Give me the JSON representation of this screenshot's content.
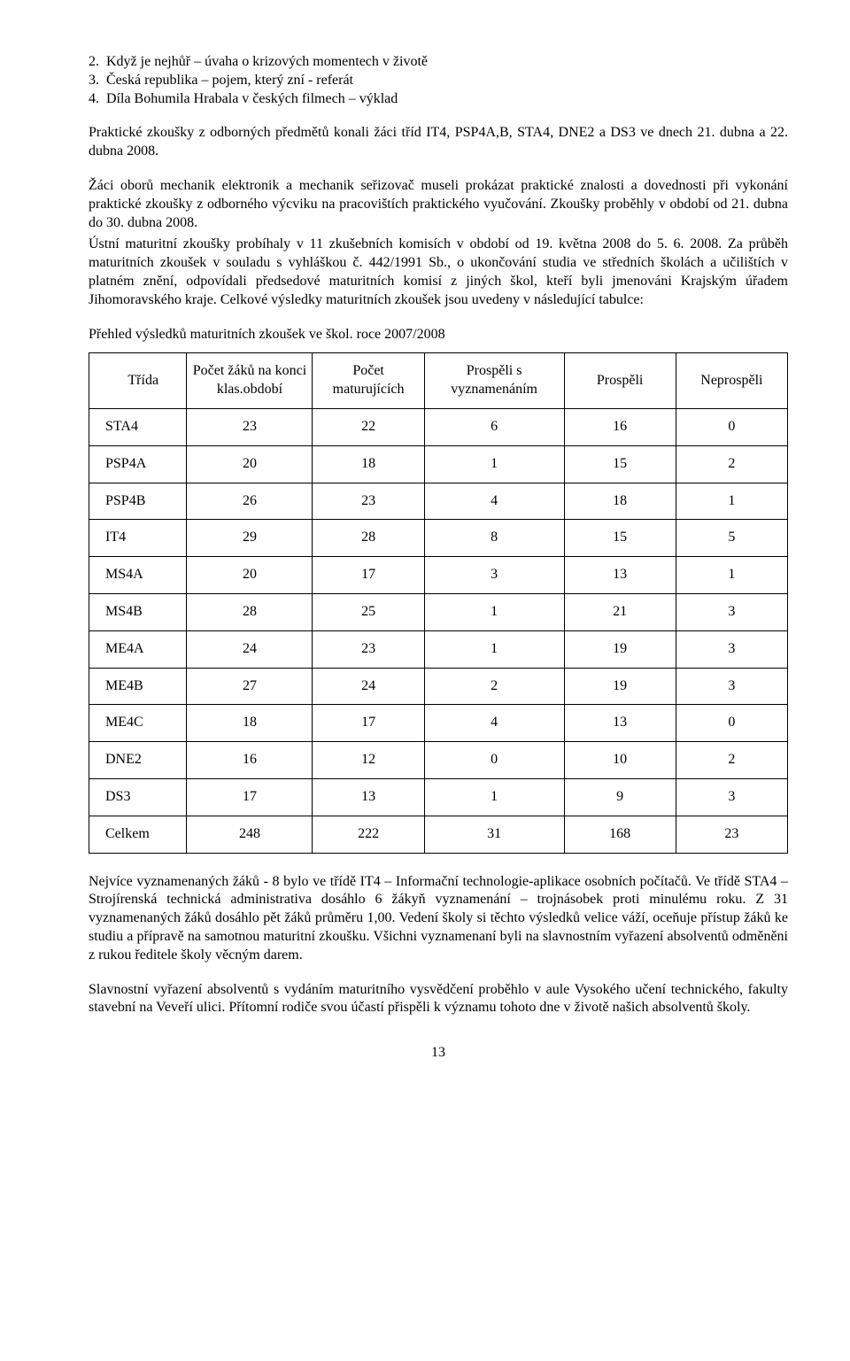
{
  "list": [
    {
      "num": "2.",
      "text": "Když je nejhůř – úvaha o krizových momentech v životě"
    },
    {
      "num": "3.",
      "text": "Česká republika – pojem, který zní - referát"
    },
    {
      "num": "4.",
      "text": "Díla Bohumila Hrabala v českých filmech – výklad"
    }
  ],
  "para1": "Praktické zkoušky z odborných předmětů konali žáci tříd IT4, PSP4A,B, STA4, DNE2 a DS3 ve dnech 21. dubna a 22. dubna 2008.",
  "para2": "Žáci oborů mechanik elektronik a mechanik seřizovač museli prokázat praktické znalosti a dovednosti při vykonání praktické zkoušky z odborného výcviku na pracovištích praktického vyučování. Zkoušky proběhly v období od 21. dubna do 30. dubna 2008.",
  "para3": "Ústní maturitní zkoušky probíhaly v 11 zkušebních komisích v období od 19. května 2008 do 5. 6. 2008. Za průběh maturitních zkoušek v souladu s vyhláškou č. 442/1991 Sb., o ukončování studia ve středních školách a učilištích v platném znění, odpovídali předsedové maturitních komisí z jiných škol, kteří byli jmenováni Krajským úřadem Jihomoravského kraje. Celkové výsledky maturitních zkoušek jsou uvedeny v následující tabulce:",
  "tableTitle": "Přehled výsledků maturitních zkoušek ve škol. roce 2007/2008",
  "table": {
    "columns": [
      "Třída",
      "Počet žáků na konci klas.období",
      "Počet maturujících",
      "Prospěli s vyznamenáním",
      "Prospěli",
      "Neprospěli"
    ],
    "rows": [
      [
        "STA4",
        "23",
        "22",
        "6",
        "16",
        "0"
      ],
      [
        "PSP4A",
        "20",
        "18",
        "1",
        "15",
        "2"
      ],
      [
        "PSP4B",
        "26",
        "23",
        "4",
        "18",
        "1"
      ],
      [
        "IT4",
        "29",
        "28",
        "8",
        "15",
        "5"
      ],
      [
        "MS4A",
        "20",
        "17",
        "3",
        "13",
        "1"
      ],
      [
        "MS4B",
        "28",
        "25",
        "1",
        "21",
        "3"
      ],
      [
        "ME4A",
        "24",
        "23",
        "1",
        "19",
        "3"
      ],
      [
        "ME4B",
        "27",
        "24",
        "2",
        "19",
        "3"
      ],
      [
        "ME4C",
        "18",
        "17",
        "4",
        "13",
        "0"
      ],
      [
        "DNE2",
        "16",
        "12",
        "0",
        "10",
        "2"
      ],
      [
        "DS3",
        "17",
        "13",
        "1",
        "9",
        "3"
      ],
      [
        "Celkem",
        "248",
        "222",
        "31",
        "168",
        "23"
      ]
    ],
    "col_widths": [
      "14%",
      "18%",
      "16%",
      "20%",
      "16%",
      "16%"
    ],
    "border_color": "#000000",
    "background_color": "#ffffff",
    "font_size": 16
  },
  "para4": "Nejvíce vyznamenaných žáků - 8 bylo ve třídě IT4 – Informační technologie-aplikace osobních počítačů. Ve třídě STA4 – Strojírenská technická administrativa dosáhlo 6 žákyň  vyznamenání – trojnásobek proti minulému roku. Z 31 vyznamenaných žáků dosáhlo pět žáků průměru 1,00. Vedení školy si těchto výsledků velice váží, oceňuje přístup žáků ke studiu a přípravě na samotnou maturitní zkoušku. Všichni vyznamenaní byli na slavnostním vyřazení absolventů odměněni z rukou ředitele školy věcným darem.",
  "para5": "Slavnostní vyřazení absolventů s vydáním maturitního vysvědčení proběhlo v aule Vysokého učení technického, fakulty stavební na Veveří ulici. Přítomní rodiče svou účastí přispěli k významu tohoto dne v životě našich absolventů školy.",
  "pageNumber": "13"
}
